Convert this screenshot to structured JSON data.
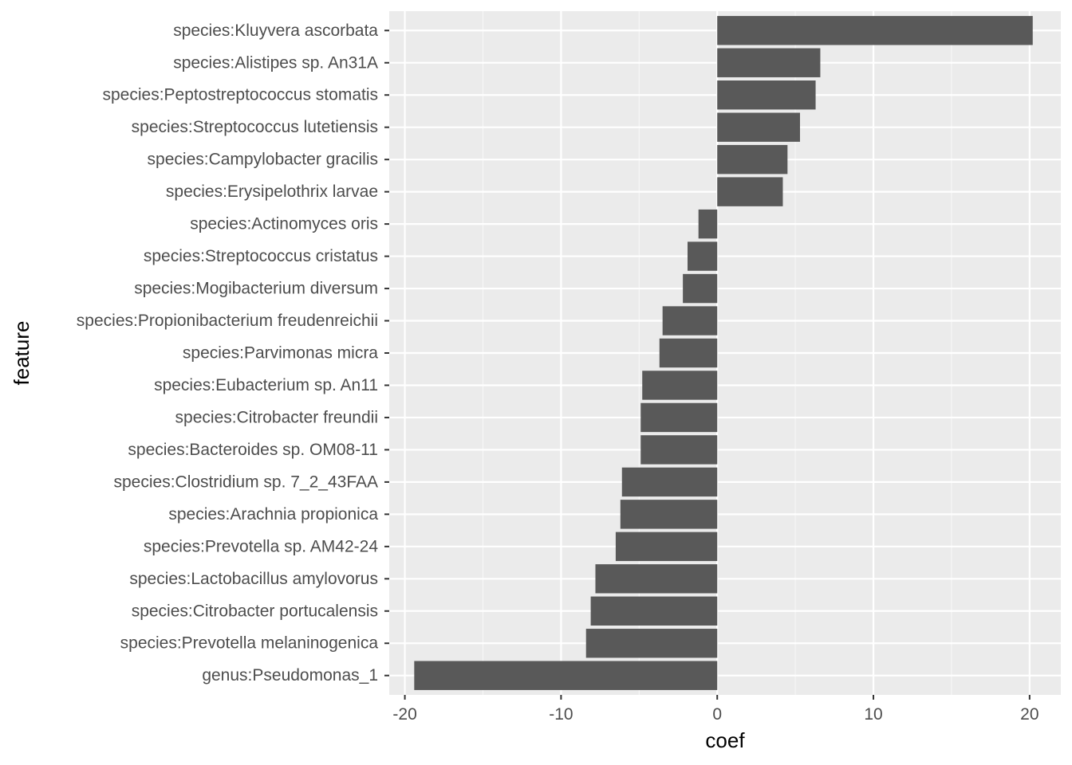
{
  "chart_data": {
    "type": "bar",
    "orientation": "horizontal",
    "xlabel": "coef",
    "ylabel": "feature",
    "xlim": [
      -21,
      22
    ],
    "x_ticks": [
      -20,
      -10,
      0,
      10,
      20
    ],
    "x_tick_labels": [
      "-20",
      "-10",
      "0",
      "10",
      "20"
    ],
    "grid": true,
    "legend": "none",
    "categories": [
      "species:Kluyvera ascorbata",
      "species:Alistipes sp. An31A",
      "species:Peptostreptococcus stomatis",
      "species:Streptococcus lutetiensis",
      "species:Campylobacter gracilis",
      "species:Erysipelothrix larvae",
      "species:Actinomyces oris",
      "species:Streptococcus cristatus",
      "species:Mogibacterium diversum",
      "species:Propionibacterium freudenreichii",
      "species:Parvimonas micra",
      "species:Eubacterium sp. An11",
      "species:Citrobacter freundii",
      "species:Bacteroides sp. OM08-11",
      "species:Clostridium sp. 7_2_43FAA",
      "species:Arachnia propionica",
      "species:Prevotella sp. AM42-24",
      "species:Lactobacillus amylovorus",
      "species:Citrobacter portucalensis",
      "species:Prevotella melaninogenica",
      "genus:Pseudomonas_1"
    ],
    "values": [
      20.2,
      6.6,
      6.3,
      5.3,
      4.5,
      4.2,
      -1.2,
      -1.9,
      -2.2,
      -3.5,
      -3.7,
      -4.8,
      -4.9,
      -4.9,
      -6.1,
      -6.2,
      -6.5,
      -7.8,
      -8.1,
      -8.4,
      -19.4
    ],
    "colors": {
      "bar": "#595959",
      "panel": "#ebebeb",
      "grid_major": "#ffffff",
      "grid_minor": "#f7f7f7",
      "tick_text": "#4d4d4d",
      "tick_mark": "#333333"
    }
  }
}
